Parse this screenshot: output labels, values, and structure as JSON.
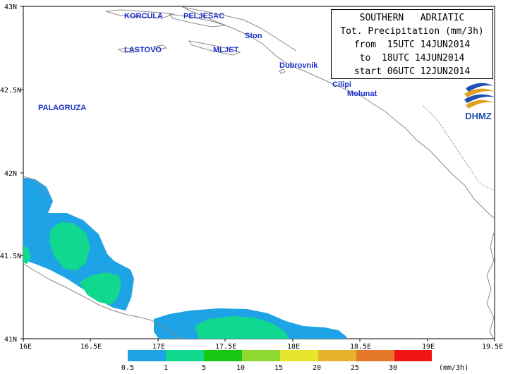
{
  "title": {
    "lines": [
      "SOUTHERN   ADRIATIC",
      "Tot. Precipitation (mm/3h)",
      "from  15UTC 14JUN2014",
      "to  18UTC 14JUN2014",
      "start 06UTC 12JUN2014"
    ]
  },
  "logo": {
    "text": "DHMZ"
  },
  "axes": {
    "x_ticks": [
      "16E",
      "16.5E",
      "17E",
      "17.5E",
      "18E",
      "18.5E",
      "19E",
      "19.5E"
    ],
    "y_ticks": [
      "43N",
      "42.5N",
      "42N",
      "41.5N",
      "41N"
    ]
  },
  "places": [
    "KORCULA",
    "PELJESAC",
    "Ston",
    "LASTOVO",
    "MLJET",
    "Dubrovnik",
    "Cilipi",
    "Molunat",
    "PALAGRUZA"
  ],
  "legend": {
    "labels": [
      "0.5",
      "1",
      "5",
      "10",
      "15",
      "20",
      "25",
      "30"
    ],
    "unit": "(mm/3h)",
    "colors": [
      "#1ea3e6",
      "#10d88e",
      "#16c814",
      "#8ed830",
      "#e6e62c",
      "#e6b42c",
      "#e6782c",
      "#f01414"
    ]
  }
}
